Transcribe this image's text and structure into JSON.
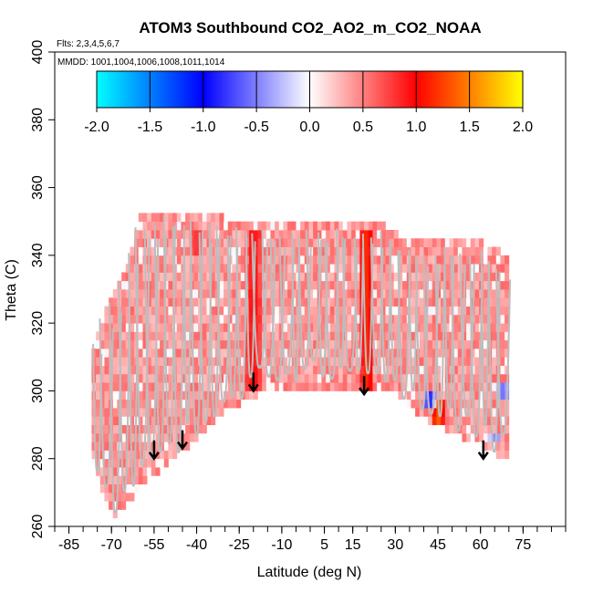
{
  "chart_data": {
    "type": "heatmap",
    "title": "ATOM3 Southbound CO2_AO2_m_CO2_NOAA",
    "annotations": {
      "flights": "Flts: 2,3,4,5,6,7",
      "dates": "MMDD: 1001,1004,1006,1008,1011,1014"
    },
    "xlabel": "Latitude (deg N)",
    "ylabel": "Theta (C)",
    "xlim": [
      -90,
      90
    ],
    "ylim": [
      260,
      400
    ],
    "x_ticks": [
      -85,
      -70,
      -55,
      -40,
      -25,
      -10,
      5,
      15,
      30,
      45,
      60,
      75
    ],
    "x_tick_labels": [
      "-85",
      "-70",
      "-55",
      "-40",
      "-25",
      "-10",
      "5",
      "15",
      "30",
      "45",
      "60",
      "75"
    ],
    "y_ticks": [
      260,
      280,
      300,
      320,
      340,
      360,
      380,
      400
    ],
    "y_tick_labels": [
      "260",
      "280",
      "300",
      "320",
      "340",
      "360",
      "380",
      "400"
    ],
    "colorbar": {
      "min": -2.0,
      "max": 2.0,
      "ticks": [
        -2.0,
        -1.5,
        -1.0,
        -0.5,
        0.0,
        0.5,
        1.0,
        1.5,
        2.0
      ],
      "tick_labels": [
        "-2.0",
        "-1.5",
        "-1.0",
        "-0.5",
        "0.0",
        "0.5",
        "1.0",
        "1.5",
        "2.0"
      ],
      "colors": [
        "#00ffff",
        "#0000ff",
        "#ffffff",
        "#ff0000",
        "#ffff00"
      ]
    },
    "arrows": [
      {
        "lat": -55,
        "theta": 280
      },
      {
        "lat": -45,
        "theta": 283
      },
      {
        "lat": -20,
        "theta": 300
      },
      {
        "lat": 19,
        "theta": 299
      },
      {
        "lat": 61,
        "theta": 280
      }
    ],
    "data_region": {
      "upper_boundary": [
        [
          -77,
          309
        ],
        [
          -72,
          323
        ],
        [
          -65,
          335
        ],
        [
          -60,
          351
        ],
        [
          -50,
          352
        ],
        [
          -30,
          350
        ],
        [
          -20,
          349
        ],
        [
          -10,
          348
        ],
        [
          0,
          348
        ],
        [
          15,
          348
        ],
        [
          25,
          348
        ],
        [
          35,
          343
        ],
        [
          50,
          344
        ],
        [
          65,
          342
        ],
        [
          70,
          338
        ]
      ],
      "lower_boundary": [
        [
          -77,
          280
        ],
        [
          -72,
          264
        ],
        [
          -68,
          262
        ],
        [
          -60,
          270
        ],
        [
          -50,
          278
        ],
        [
          -40,
          284
        ],
        [
          -30,
          293
        ],
        [
          -18,
          298
        ],
        [
          -10,
          299
        ],
        [
          0,
          300
        ],
        [
          10,
          300
        ],
        [
          22,
          299
        ],
        [
          28,
          300
        ],
        [
          38,
          292
        ],
        [
          50,
          286
        ],
        [
          60,
          283
        ],
        [
          68,
          279
        ],
        [
          70,
          280
        ]
      ]
    },
    "hotspots": [
      {
        "lat": -20,
        "theta_range": [
          300,
          345
        ],
        "value": 1.0
      },
      {
        "lat": 20,
        "theta_range": [
          299,
          347
        ],
        "value": 1.2
      },
      {
        "lat": -40,
        "theta_range": [
          338,
          345
        ],
        "value": 0.8
      },
      {
        "lat": 45,
        "theta_range": [
          290,
          295
        ],
        "value": 1.4
      },
      {
        "lat": 42,
        "theta_range": [
          294,
          298
        ],
        "value": -0.9
      },
      {
        "lat": 68,
        "theta_range": [
          297,
          300
        ],
        "value": -0.6
      },
      {
        "lat": 65,
        "theta_range": [
          283,
          287
        ],
        "value": -0.5
      }
    ]
  }
}
